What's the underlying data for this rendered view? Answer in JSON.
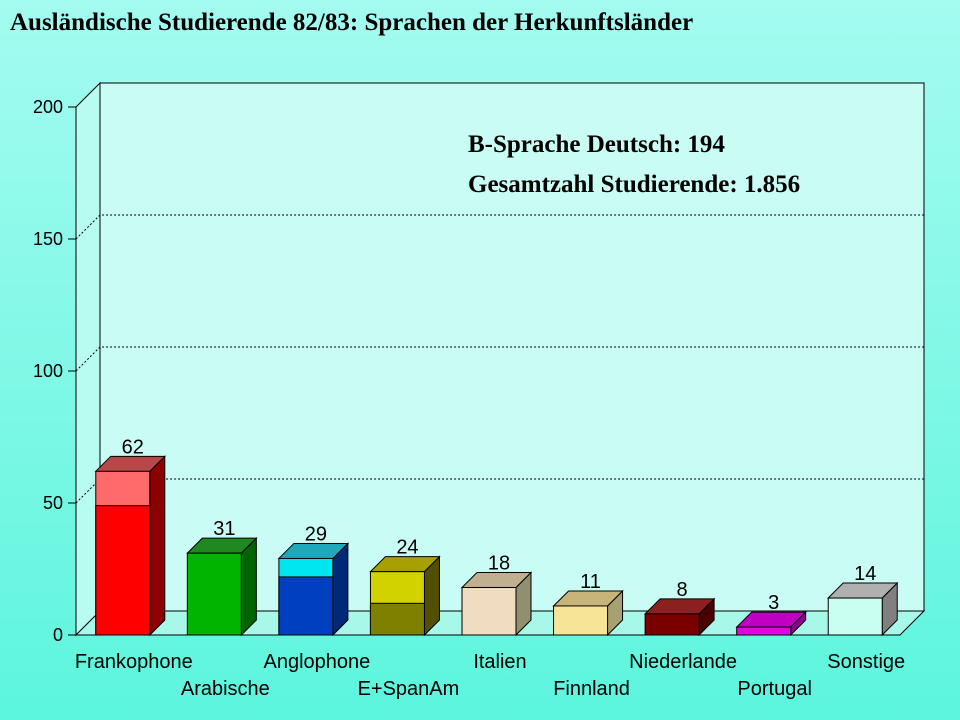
{
  "chart_data": {
    "type": "bar",
    "title": "Ausländische Studierende 82/83: Sprachen der Herkunftsländer",
    "xlabel": "",
    "ylabel": "",
    "ylim": [
      0,
      200
    ],
    "yticks": [
      0,
      50,
      100,
      150,
      200
    ],
    "grid": true,
    "categories": [
      "Frankophone",
      "Arabische",
      "Anglophone",
      "E+SpanAm",
      "Italien",
      "Finnland",
      "Niederlande",
      "Portugal",
      "Sonstige"
    ],
    "values": [
      62,
      31,
      29,
      24,
      18,
      11,
      8,
      3,
      14
    ],
    "highlighted_parts": [
      49,
      null,
      22,
      12,
      null,
      null,
      null,
      null,
      null
    ],
    "colors": {
      "top": [
        "#ff6a6a",
        "#00b400",
        "#00e6f0",
        "#d2d200",
        "#f0dcc0",
        "#f8e496",
        "#7a0000",
        "#e600e6",
        "#c8fff0"
      ],
      "bottom": [
        "#ff0000",
        "#00b400",
        "#0040c0",
        "#808000",
        "#f0dcc0",
        "#f8e496",
        "#7a0000",
        "#e600e6",
        "#c8fff0"
      ],
      "side": [
        "#8c0000",
        "#006400",
        "#002a78",
        "#505000",
        "#909070",
        "#a8a070",
        "#4a0000",
        "#900090",
        "#808080"
      ],
      "lid": [
        "#b84848",
        "#208820",
        "#20a8b8",
        "#a8a000",
        "#c0b090",
        "#c8b478",
        "#8a2020",
        "#c000c0",
        "#b0b0b0"
      ]
    },
    "annotations": [
      "B-Sprache Deutsch: 194",
      "Gesamtzahl Studierende: 1.856"
    ]
  }
}
